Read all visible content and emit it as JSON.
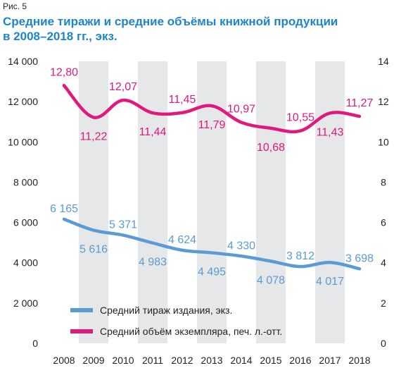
{
  "figure_label": "Рис. 5",
  "title_line1": "Средние тиражи и средние объёмы книжной продукции",
  "title_line2": "в 2008–2018 гг., экз.",
  "colors": {
    "circulation": "#5b9bd5",
    "volume": "#e0197d",
    "stripe": "#e6e7e8",
    "text": "#231f20"
  },
  "chart_data": {
    "type": "line",
    "x": [
      "2008",
      "2009",
      "2010",
      "2011",
      "2012",
      "2013",
      "2014",
      "2015",
      "2016",
      "2017",
      "2018"
    ],
    "y_left_ticks": [
      "0",
      "2 000",
      "4 000",
      "6 000",
      "8 000",
      "10 000",
      "12 000",
      "14 000"
    ],
    "y_right_ticks": [
      "0",
      "2",
      "4",
      "6",
      "8",
      "10",
      "12",
      "14"
    ],
    "ylim_left": [
      0,
      14000
    ],
    "ylim_right": [
      0,
      14
    ],
    "grid": "alternating vertical stripes",
    "legend_position": "bottom-left",
    "series": [
      {
        "name": "Средний тираж издания, экз.",
        "axis": "left",
        "values": [
          6165,
          5616,
          5371,
          4983,
          4624,
          4495,
          4330,
          4078,
          3812,
          4017,
          3698
        ],
        "labels": [
          "6 165",
          "5 616",
          "5 371",
          "4 983",
          "4 624",
          "4 495",
          "4 330",
          "4 078",
          "3 812",
          "4 017",
          "3 698"
        ]
      },
      {
        "name": "Средний объём экземпляра, печ. л.-отт.",
        "axis": "right",
        "values": [
          12.8,
          11.22,
          12.07,
          11.44,
          11.45,
          11.79,
          10.97,
          10.68,
          10.55,
          11.43,
          11.27
        ],
        "labels": [
          "12,80",
          "11,22",
          "12,07",
          "11,44",
          "11,45",
          "11,79",
          "10,97",
          "10,68",
          "10,55",
          "11,43",
          "11,27"
        ]
      }
    ]
  }
}
